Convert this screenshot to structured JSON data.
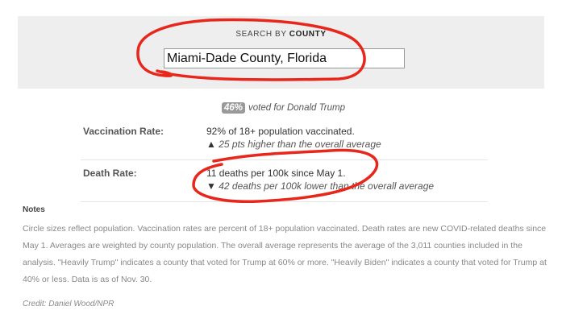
{
  "search": {
    "label_prefix": "SEARCH BY ",
    "label_strong": "COUNTY",
    "value": "Miami-Dade County, Florida"
  },
  "vote": {
    "percent": "46%",
    "text": "voted for Donald Trump"
  },
  "rows": [
    {
      "label": "Vaccination Rate:",
      "value": "92% of 18+ population vaccinated.",
      "compare_icon": "▲",
      "compare": "25 pts higher than the overall average"
    },
    {
      "label": "Death Rate:",
      "value": "11 deaths per 100k since May 1.",
      "compare_icon": "▼",
      "compare": "42 deaths per 100k lower than the overall average"
    }
  ],
  "notes": {
    "heading": "Notes",
    "text": "Circle sizes reflect population. Vaccination rates are percent of 18+ population vaccinated. Death rates are new COVID-related deaths since May 1. Averages are weighted by county population. The overall average represents the average of the 3,011 counties included in the analysis. \"Heavily Trump\" indicates a county that voted for Trump at 60% or more. \"Heavily Biden\" indicates a county that voted for Trump at 40% or less. Data is as of Nov. 30."
  },
  "credit": "Credit: Daniel Wood/NPR",
  "annotation_color": "#e8261b"
}
